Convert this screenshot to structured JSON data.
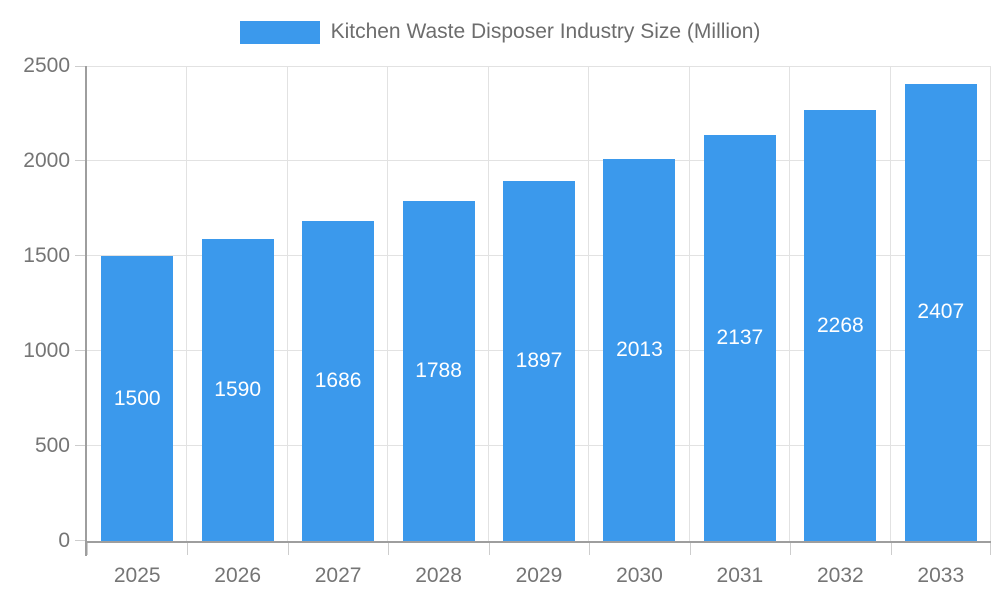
{
  "legend": {
    "label": "Kitchen Waste Disposer Industry Size (Million)"
  },
  "chart_data": {
    "type": "bar",
    "title": "Kitchen Waste Disposer Industry Size (Million)",
    "series_name": "Kitchen Waste Disposer Industry Size (Million)",
    "categories": [
      "2025",
      "2026",
      "2027",
      "2028",
      "2029",
      "2030",
      "2031",
      "2032",
      "2033"
    ],
    "values": [
      1500,
      1590,
      1686,
      1788,
      1897,
      2013,
      2137,
      2268,
      2407
    ],
    "xlabel": "",
    "ylabel": "",
    "ylim": [
      0,
      2500
    ],
    "y_ticks": [
      0,
      500,
      1000,
      1500,
      2000,
      2500
    ],
    "grid": true,
    "legend_position": "top-center",
    "value_labels": "inside-center"
  },
  "colors": {
    "bar": "#3B99EC",
    "bar_label": "#FFFFFF",
    "grid_line": "#E2E2E2",
    "axis_line": "#9E9E9E",
    "tick_line": "#CDCDCD",
    "axis_text": "#757575",
    "legend_text": "#6D6D6D",
    "background": "#FFFFFF"
  }
}
